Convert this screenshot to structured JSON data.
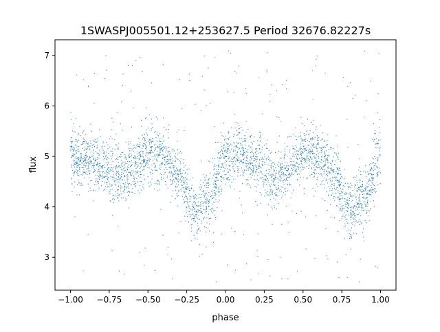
{
  "chart_data": {
    "type": "scatter",
    "title": "1SWASPJ005501.12+253627.5 Period 32676.82227s",
    "xlabel": "phase",
    "ylabel": "flux",
    "xlim": [
      -1.1,
      1.1
    ],
    "ylim": [
      2.35,
      7.31
    ],
    "xticks": [
      -1.0,
      -0.75,
      -0.5,
      -0.25,
      0.0,
      0.25,
      0.5,
      0.75,
      1.0
    ],
    "xtick_labels": [
      "−1.00",
      "−0.75",
      "−0.50",
      "−0.25",
      "0.00",
      "0.25",
      "0.50",
      "0.75",
      "1.00"
    ],
    "yticks": [
      3,
      4,
      5,
      6,
      7
    ],
    "ytick_labels": [
      "3",
      "4",
      "5",
      "6",
      "7"
    ],
    "grid": false,
    "marker_color": "#1f77b4",
    "binned_light_curve": {
      "phase": [
        -1.0,
        -0.9,
        -0.8,
        -0.7,
        -0.6,
        -0.5,
        -0.4,
        -0.3,
        -0.2,
        -0.1,
        0.0,
        0.1,
        0.2,
        0.3,
        0.4,
        0.5,
        0.6,
        0.7,
        0.8,
        0.9,
        1.0
      ],
      "mean_flux": [
        4.95,
        4.95,
        4.85,
        4.6,
        4.75,
        5.05,
        5.0,
        4.6,
        3.9,
        4.2,
        4.95,
        5.05,
        4.85,
        4.6,
        4.75,
        5.05,
        5.0,
        4.6,
        3.9,
        4.2,
        4.95
      ],
      "scatter_sigma": 0.28,
      "outlier_flux_range": [
        2.5,
        7.1
      ]
    }
  }
}
